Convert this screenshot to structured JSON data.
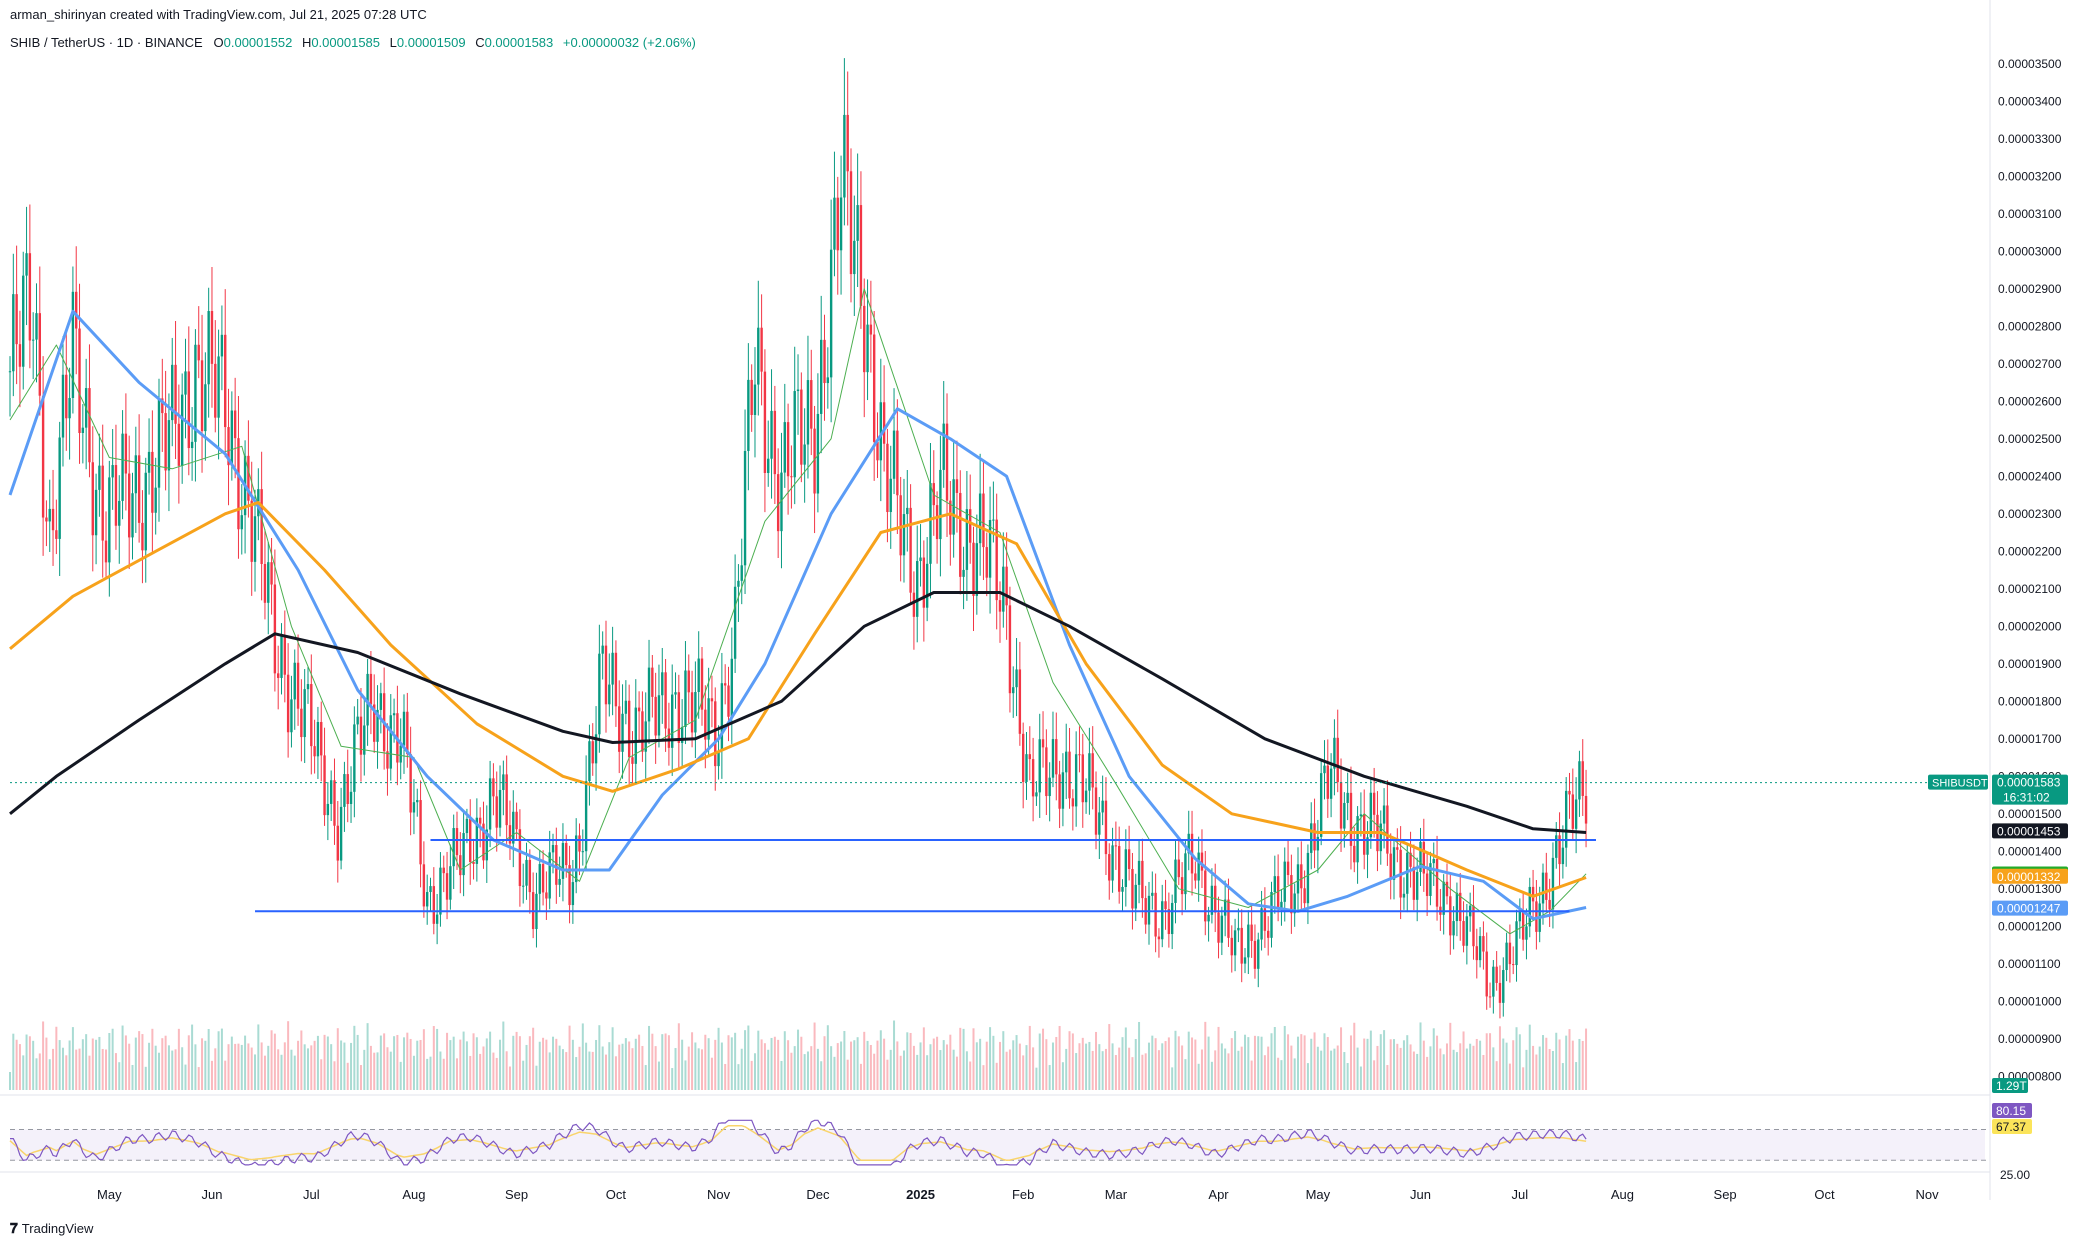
{
  "header": {
    "attribution": "arman_shirinyan created with TradingView.com, Jul 21, 2025 07:28 UTC",
    "symbol": "SHIB / TetherUS · 1D · BINANCE",
    "open_label": "O",
    "open": "0.00001552",
    "high_label": "H",
    "high": "0.00001585",
    "low_label": "L",
    "low": "0.00001509",
    "close_label": "C",
    "close": "0.00001583",
    "change": "+0.00000032 (+2.06%)"
  },
  "footer": {
    "brand": "TradingView"
  },
  "colors": {
    "up": "#089981",
    "down": "#f23645",
    "ma_fast": "#4caf50",
    "ma_blue": "#5b9cf6",
    "ma_orange": "#f7a21b",
    "ma_black": "#131722",
    "support": "#2962ff",
    "rsi": "#7e57c2",
    "rsi_ma": "#f9d46b",
    "rsi_band": "#ede7f6"
  },
  "chart_data": {
    "type": "candlestick",
    "pair": "SHIBUSDT",
    "timeframe": "1D",
    "x_range": [
      "2024-04-01",
      "2025-11-20"
    ],
    "ylim": [
      7.5e-06,
      3.55e-05
    ],
    "y_ticks": [
      "0.00003500",
      "0.00003400",
      "0.00003300",
      "0.00003200",
      "0.00003100",
      "0.00003000",
      "0.00002900",
      "0.00002800",
      "0.00002700",
      "0.00002600",
      "0.00002500",
      "0.00002400",
      "0.00002300",
      "0.00002200",
      "0.00002100",
      "0.00002000",
      "0.00001900",
      "0.00001800",
      "0.00001700",
      "0.00001600",
      "0.00001500",
      "0.00001400",
      "0.00001300",
      "0.00001200",
      "0.00001100",
      "0.00001000",
      "0.00000900",
      "0.00000800"
    ],
    "x_ticks": [
      {
        "label": "May",
        "date": "2024-05-01"
      },
      {
        "label": "Jun",
        "date": "2024-06-01"
      },
      {
        "label": "Jul",
        "date": "2024-07-01"
      },
      {
        "label": "Aug",
        "date": "2024-08-01"
      },
      {
        "label": "Sep",
        "date": "2024-09-01"
      },
      {
        "label": "Oct",
        "date": "2024-10-01"
      },
      {
        "label": "Nov",
        "date": "2024-11-01"
      },
      {
        "label": "Dec",
        "date": "2024-12-01"
      },
      {
        "label": "2025",
        "date": "2025-01-01"
      },
      {
        "label": "Feb",
        "date": "2025-02-01"
      },
      {
        "label": "Mar",
        "date": "2025-03-01"
      },
      {
        "label": "Apr",
        "date": "2025-04-01"
      },
      {
        "label": "May",
        "date": "2025-05-01"
      },
      {
        "label": "Jun",
        "date": "2025-06-01"
      },
      {
        "label": "Jul",
        "date": "2025-07-01"
      },
      {
        "label": "Aug",
        "date": "2025-08-01"
      },
      {
        "label": "Sep",
        "date": "2025-09-01"
      },
      {
        "label": "Oct",
        "date": "2025-10-01"
      },
      {
        "label": "Nov",
        "date": "2025-11-01"
      }
    ],
    "close_path": [
      [
        "2024-04-01",
        2.68e-05
      ],
      [
        "2024-04-08",
        2.85e-05
      ],
      [
        "2024-04-13",
        2.25e-05
      ],
      [
        "2024-04-20",
        2.7e-05
      ],
      [
        "2024-04-30",
        2.28e-05
      ],
      [
        "2024-05-10",
        2.38e-05
      ],
      [
        "2024-05-20",
        2.5e-05
      ],
      [
        "2024-05-27",
        2.7e-05
      ],
      [
        "2024-06-05",
        2.58e-05
      ],
      [
        "2024-06-12",
        2.35e-05
      ],
      [
        "2024-06-20",
        1.95e-05
      ],
      [
        "2024-06-27",
        1.82e-05
      ],
      [
        "2024-07-04",
        1.6e-05
      ],
      [
        "2024-07-09",
        1.5e-05
      ],
      [
        "2024-07-20",
        1.8e-05
      ],
      [
        "2024-07-28",
        1.7e-05
      ],
      [
        "2024-08-05",
        1.28e-05
      ],
      [
        "2024-08-15",
        1.37e-05
      ],
      [
        "2024-08-25",
        1.55e-05
      ],
      [
        "2024-09-06",
        1.3e-05
      ],
      [
        "2024-09-18",
        1.35e-05
      ],
      [
        "2024-09-27",
        1.85e-05
      ],
      [
        "2024-10-08",
        1.72e-05
      ],
      [
        "2024-10-20",
        1.82e-05
      ],
      [
        "2024-10-31",
        1.72e-05
      ],
      [
        "2024-11-06",
        2e-05
      ],
      [
        "2024-11-12",
        2.7e-05
      ],
      [
        "2024-11-20",
        2.4e-05
      ],
      [
        "2024-11-30",
        2.55e-05
      ],
      [
        "2024-12-08",
        3.15e-05
      ],
      [
        "2024-12-15",
        2.9e-05
      ],
      [
        "2024-12-21",
        2.4e-05
      ],
      [
        "2024-12-31",
        2.15e-05
      ],
      [
        "2025-01-08",
        2.35e-05
      ],
      [
        "2025-01-20",
        2.2e-05
      ],
      [
        "2025-01-27",
        2.05e-05
      ],
      [
        "2025-02-03",
        1.55e-05
      ],
      [
        "2025-02-12",
        1.65e-05
      ],
      [
        "2025-02-24",
        1.5e-05
      ],
      [
        "2025-03-06",
        1.28e-05
      ],
      [
        "2025-03-16",
        1.24e-05
      ],
      [
        "2025-03-25",
        1.38e-05
      ],
      [
        "2025-04-06",
        1.12e-05
      ],
      [
        "2025-04-15",
        1.22e-05
      ],
      [
        "2025-04-25",
        1.32e-05
      ],
      [
        "2025-05-05",
        1.6e-05
      ],
      [
        "2025-05-12",
        1.48e-05
      ],
      [
        "2025-05-20",
        1.43e-05
      ],
      [
        "2025-06-01",
        1.32e-05
      ],
      [
        "2025-06-10",
        1.28e-05
      ],
      [
        "2025-06-22",
        1.05e-05
      ],
      [
        "2025-07-01",
        1.16e-05
      ],
      [
        "2025-07-10",
        1.35e-05
      ],
      [
        "2025-07-21",
        1.58e-05
      ]
    ],
    "ma_blue_path": [
      [
        "2024-04-01",
        2.35e-05
      ],
      [
        "2024-04-20",
        2.84e-05
      ],
      [
        "2024-05-10",
        2.65e-05
      ],
      [
        "2024-06-05",
        2.46e-05
      ],
      [
        "2024-06-27",
        2.15e-05
      ],
      [
        "2024-07-15",
        1.83e-05
      ],
      [
        "2024-08-05",
        1.6e-05
      ],
      [
        "2024-08-25",
        1.43e-05
      ],
      [
        "2024-09-15",
        1.35e-05
      ],
      [
        "2024-09-29",
        1.35e-05
      ],
      [
        "2024-10-15",
        1.55e-05
      ],
      [
        "2024-11-01",
        1.7e-05
      ],
      [
        "2024-11-15",
        1.9e-05
      ],
      [
        "2024-12-05",
        2.3e-05
      ],
      [
        "2024-12-25",
        2.58e-05
      ],
      [
        "2025-01-10",
        2.5e-05
      ],
      [
        "2025-01-27",
        2.4e-05
      ],
      [
        "2025-02-15",
        1.95e-05
      ],
      [
        "2025-03-05",
        1.6e-05
      ],
      [
        "2025-03-25",
        1.38e-05
      ],
      [
        "2025-04-10",
        1.26e-05
      ],
      [
        "2025-04-25",
        1.24e-05
      ],
      [
        "2025-05-10",
        1.28e-05
      ],
      [
        "2025-06-01",
        1.36e-05
      ],
      [
        "2025-06-20",
        1.32e-05
      ],
      [
        "2025-07-05",
        1.22e-05
      ],
      [
        "2025-07-21",
        1.25e-05
      ]
    ],
    "ma_fast_path": [
      [
        "2024-04-01",
        2.55e-05
      ],
      [
        "2024-04-15",
        2.75e-05
      ],
      [
        "2024-05-01",
        2.45e-05
      ],
      [
        "2024-05-20",
        2.42e-05
      ],
      [
        "2024-06-10",
        2.48e-05
      ],
      [
        "2024-06-25",
        2e-05
      ],
      [
        "2024-07-10",
        1.68e-05
      ],
      [
        "2024-08-01",
        1.65e-05
      ],
      [
        "2024-08-15",
        1.35e-05
      ],
      [
        "2024-09-01",
        1.45e-05
      ],
      [
        "2024-09-20",
        1.32e-05
      ],
      [
        "2024-10-05",
        1.65e-05
      ],
      [
        "2024-10-25",
        1.75e-05
      ],
      [
        "2024-11-15",
        2.28e-05
      ],
      [
        "2024-12-05",
        2.5e-05
      ],
      [
        "2024-12-15",
        2.9e-05
      ],
      [
        "2025-01-05",
        2.35e-05
      ],
      [
        "2025-01-25",
        2.25e-05
      ],
      [
        "2025-02-10",
        1.85e-05
      ],
      [
        "2025-03-01",
        1.58e-05
      ],
      [
        "2025-03-20",
        1.3e-05
      ],
      [
        "2025-04-10",
        1.25e-05
      ],
      [
        "2025-05-01",
        1.35e-05
      ],
      [
        "2025-05-15",
        1.5e-05
      ],
      [
        "2025-06-10",
        1.3e-05
      ],
      [
        "2025-06-28",
        1.18e-05
      ],
      [
        "2025-07-10",
        1.24e-05
      ],
      [
        "2025-07-21",
        1.34e-05
      ]
    ],
    "ma_orange_path": [
      [
        "2024-04-01",
        1.94e-05
      ],
      [
        "2024-04-20",
        2.08e-05
      ],
      [
        "2024-05-15",
        2.2e-05
      ],
      [
        "2024-06-05",
        2.3e-05
      ],
      [
        "2024-06-15",
        2.33e-05
      ],
      [
        "2024-07-05",
        2.15e-05
      ],
      [
        "2024-07-25",
        1.95e-05
      ],
      [
        "2024-08-20",
        1.74e-05
      ],
      [
        "2024-09-15",
        1.6e-05
      ],
      [
        "2024-09-30",
        1.56e-05
      ],
      [
        "2024-10-20",
        1.62e-05
      ],
      [
        "2024-11-10",
        1.7e-05
      ],
      [
        "2024-11-30",
        1.98e-05
      ],
      [
        "2024-12-20",
        2.25e-05
      ],
      [
        "2025-01-10",
        2.3e-05
      ],
      [
        "2025-01-30",
        2.22e-05
      ],
      [
        "2025-02-20",
        1.9e-05
      ],
      [
        "2025-03-15",
        1.63e-05
      ],
      [
        "2025-04-05",
        1.5e-05
      ],
      [
        "2025-05-01",
        1.45e-05
      ],
      [
        "2025-05-20",
        1.45e-05
      ],
      [
        "2025-06-15",
        1.35e-05
      ],
      [
        "2025-07-05",
        1.28e-05
      ],
      [
        "2025-07-21",
        1.33e-05
      ]
    ],
    "ma_black_path": [
      [
        "2024-04-01",
        1.5e-05
      ],
      [
        "2024-04-15",
        1.6e-05
      ],
      [
        "2024-05-10",
        1.75e-05
      ],
      [
        "2024-06-05",
        1.9e-05
      ],
      [
        "2024-06-20",
        1.98e-05
      ],
      [
        "2024-07-15",
        1.93e-05
      ],
      [
        "2024-08-15",
        1.82e-05
      ],
      [
        "2024-09-15",
        1.72e-05
      ],
      [
        "2024-09-30",
        1.69e-05
      ],
      [
        "2024-10-25",
        1.7e-05
      ],
      [
        "2024-11-20",
        1.8e-05
      ],
      [
        "2024-12-15",
        2e-05
      ],
      [
        "2025-01-05",
        2.09e-05
      ],
      [
        "2025-01-25",
        2.09e-05
      ],
      [
        "2025-02-15",
        2e-05
      ],
      [
        "2025-03-15",
        1.86e-05
      ],
      [
        "2025-04-15",
        1.7e-05
      ],
      [
        "2025-05-15",
        1.6e-05
      ],
      [
        "2025-06-15",
        1.52e-05
      ],
      [
        "2025-07-05",
        1.46e-05
      ],
      [
        "2025-07-21",
        1.45e-05
      ]
    ],
    "support_lines": [
      {
        "start": "2024-08-06",
        "end": "2025-07-24",
        "value": 1.43e-05
      },
      {
        "start": "2024-06-14",
        "end": "2025-07-16",
        "value": 1.24e-05
      }
    ],
    "last_price_line": 1.583e-05,
    "price_labels": [
      {
        "name": "SHIBUSDT",
        "value": 1.583e-05,
        "text": "0.00001583",
        "countdown": "16:31:02",
        "color": "#089981"
      },
      {
        "value": 1.453e-05,
        "text": "0.00001453",
        "color": "#131722"
      },
      {
        "value": 1.338e-05,
        "text": "0.00001338",
        "color": "#22ab29"
      },
      {
        "value": 1.332e-05,
        "text": "0.00001332",
        "color": "#f7a21b"
      },
      {
        "value": 1.247e-05,
        "text": "0.00001247",
        "color": "#5b9cf6"
      }
    ],
    "volume_label": "1.29T",
    "rsi": {
      "value": "80.15",
      "ma_value": "67.37",
      "level_tick": "25.00",
      "upper": 70,
      "lower": 30
    }
  }
}
